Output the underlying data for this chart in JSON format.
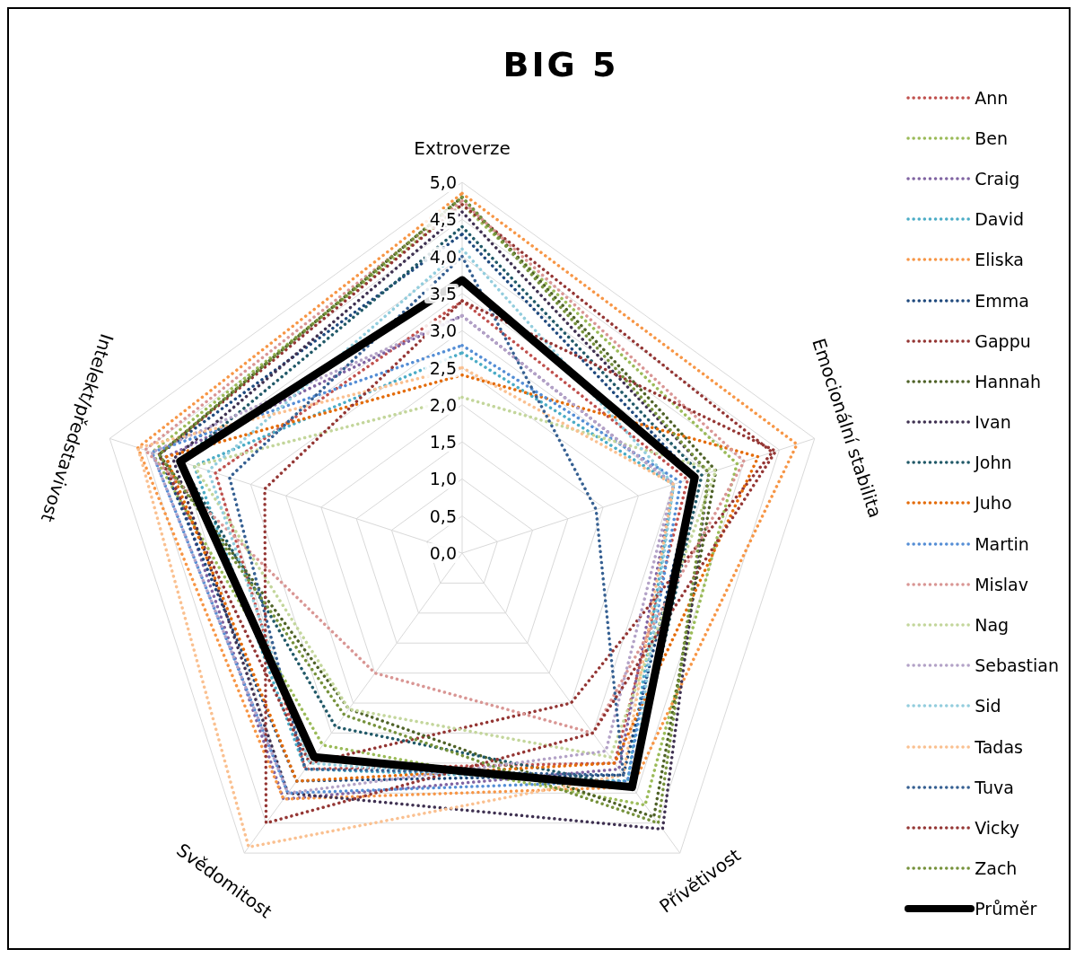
{
  "chart_data": {
    "type": "radar",
    "title": "BIG 5",
    "categories": [
      "Extroverze",
      "Emocionální stabilita",
      "Přívětivost",
      "Svědomitost",
      "Intelekt/představivost"
    ],
    "ylim": [
      0,
      5
    ],
    "yticks": [
      {
        "value": 0,
        "label": "0,0"
      },
      {
        "value": 0.5,
        "label": "0,5"
      },
      {
        "value": 1,
        "label": "1,0"
      },
      {
        "value": 1.5,
        "label": "1,5"
      },
      {
        "value": 2,
        "label": "2,0"
      },
      {
        "value": 2.5,
        "label": "2,5"
      },
      {
        "value": 3,
        "label": "3,0"
      },
      {
        "value": 3.5,
        "label": "3,5"
      },
      {
        "value": 4,
        "label": "4,0"
      },
      {
        "value": 4.5,
        "label": "4,5"
      },
      {
        "value": 5,
        "label": "5,0"
      }
    ],
    "grid": true,
    "legend": "right",
    "marker": "none",
    "series": [
      {
        "name": "Ann",
        "color": "#c0504d",
        "line_style": "dotted",
        "values": [
          3.4,
          3.2,
          3.5,
          3.6,
          3.5
        ]
      },
      {
        "name": "Ben",
        "color": "#9bbb59",
        "line_style": "dotted",
        "values": [
          4.7,
          3.9,
          4.2,
          3.2,
          4.4
        ]
      },
      {
        "name": "Craig",
        "color": "#8064a2",
        "line_style": "dotted",
        "values": [
          3.2,
          3.0,
          3.6,
          4.1,
          4.2
        ]
      },
      {
        "name": "David",
        "color": "#4bacc6",
        "line_style": "dotted",
        "values": [
          2.7,
          3.0,
          3.8,
          3.6,
          3.8
        ]
      },
      {
        "name": "Eliska",
        "color": "#f79646",
        "line_style": "dotted",
        "values": [
          4.85,
          4.75,
          3.9,
          4.1,
          4.6
        ]
      },
      {
        "name": "Emma",
        "color": "#1f497d",
        "line_style": "dotted",
        "values": [
          4.3,
          3.3,
          3.7,
          3.8,
          4.3
        ]
      },
      {
        "name": "Gappu",
        "color": "#943634",
        "line_style": "dotted",
        "values": [
          4.7,
          4.4,
          2.5,
          3.5,
          4.3
        ]
      },
      {
        "name": "Hannah",
        "color": "#4f6228",
        "line_style": "dotted",
        "values": [
          4.8,
          3.6,
          4.4,
          2.6,
          4.3
        ]
      },
      {
        "name": "Ivan",
        "color": "#3f3151",
        "line_style": "dotted",
        "values": [
          4.6,
          3.5,
          4.6,
          4.0,
          4.1
        ]
      },
      {
        "name": "John",
        "color": "#215968",
        "line_style": "dotted",
        "values": [
          4.4,
          3.4,
          3.9,
          2.9,
          4.0
        ]
      },
      {
        "name": "Juho",
        "color": "#e46c0a",
        "line_style": "dotted",
        "values": [
          2.4,
          4.2,
          3.5,
          3.8,
          4.2
        ]
      },
      {
        "name": "Martin",
        "color": "#558ed5",
        "line_style": "dotted",
        "values": [
          2.8,
          3.1,
          3.8,
          4.0,
          4.4
        ]
      },
      {
        "name": "Mislav",
        "color": "#d99694",
        "line_style": "dotted",
        "values": [
          4.75,
          4.0,
          3.0,
          2.0,
          4.5
        ]
      },
      {
        "name": "Nag",
        "color": "#c3d69b",
        "line_style": "dotted",
        "values": [
          2.1,
          3.6,
          3.4,
          2.6,
          3.8
        ]
      },
      {
        "name": "Sebastian",
        "color": "#b3a2c7",
        "line_style": "dotted",
        "values": [
          3.2,
          3.0,
          3.3,
          4.0,
          4.4
        ]
      },
      {
        "name": "Sid",
        "color": "#93cddd",
        "line_style": "dotted",
        "values": [
          4.1,
          3.0,
          3.9,
          3.5,
          3.6
        ]
      },
      {
        "name": "Tadas",
        "color": "#fac090",
        "line_style": "dotted",
        "values": [
          2.5,
          3.0,
          3.7,
          4.9,
          4.6
        ]
      },
      {
        "name": "Tuva",
        "color": "#366092",
        "line_style": "dotted",
        "values": [
          4.0,
          1.9,
          3.7,
          3.6,
          3.3
        ]
      },
      {
        "name": "Vicky",
        "color": "#953735",
        "line_style": "dotted",
        "values": [
          3.4,
          4.45,
          3.0,
          4.5,
          2.8
        ]
      },
      {
        "name": "Zach",
        "color": "#76923c",
        "line_style": "dotted",
        "values": [
          4.8,
          3.5,
          4.5,
          2.7,
          4.3
        ]
      },
      {
        "name": "Průměr",
        "color": "#000000",
        "line_style": "solid",
        "values": [
          3.68,
          3.3,
          3.9,
          3.4,
          4.0
        ]
      }
    ]
  }
}
